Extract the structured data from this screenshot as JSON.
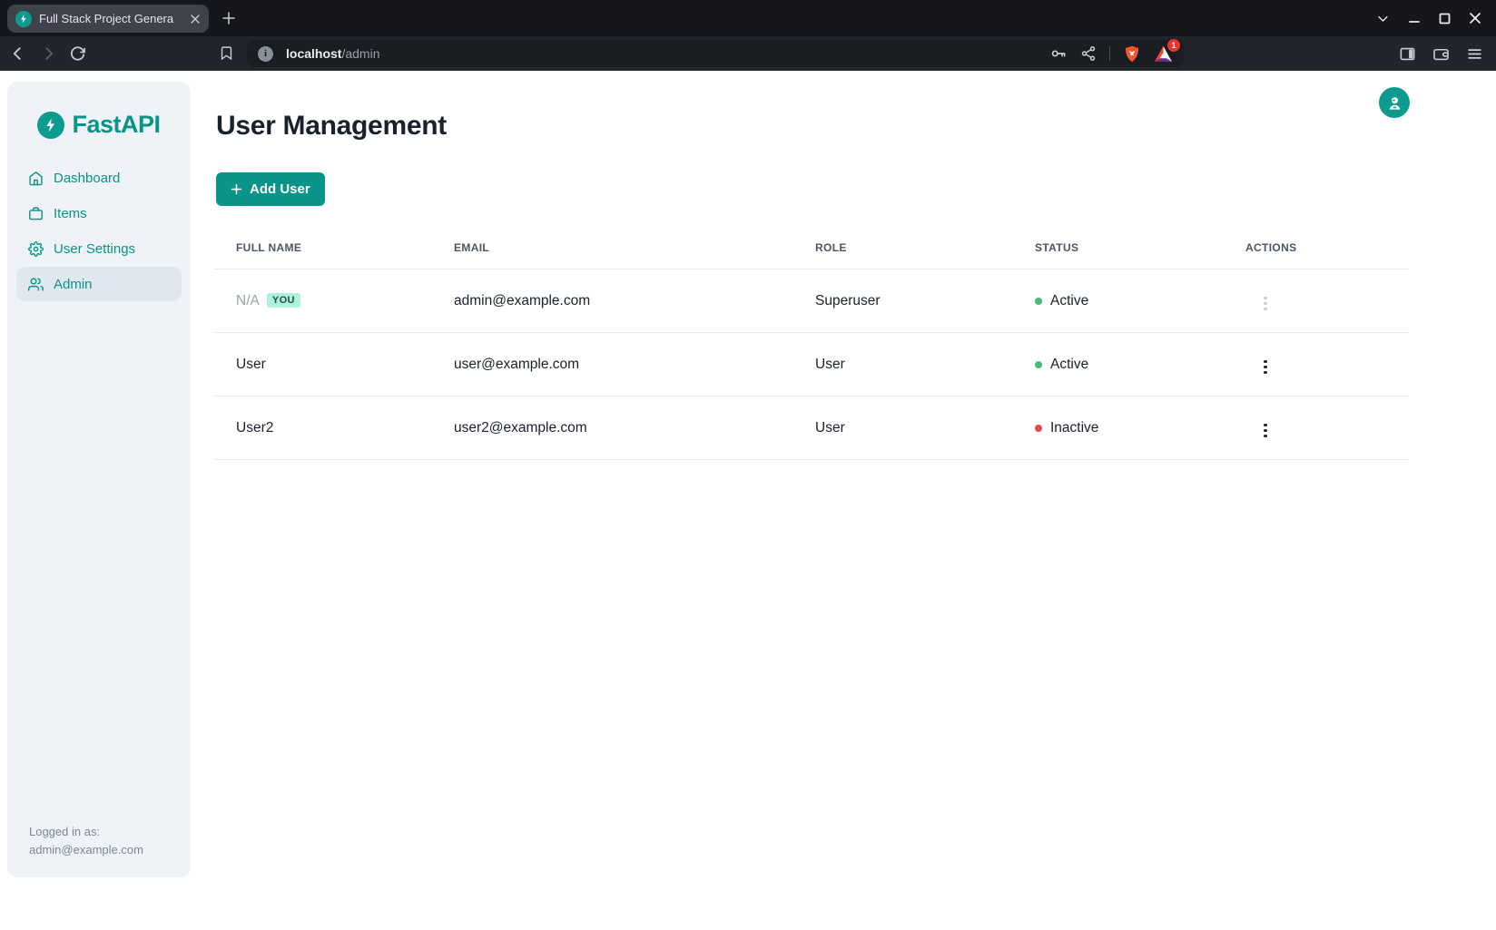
{
  "browser": {
    "tab_title": "Full Stack Project Genera",
    "url_host": "localhost",
    "url_path": "/admin",
    "rewards_badge": "1"
  },
  "sidebar": {
    "logo_text": "FastAPI",
    "nav_items": [
      {
        "label": "Dashboard",
        "icon": "home-icon",
        "active": false
      },
      {
        "label": "Items",
        "icon": "briefcase-icon",
        "active": false
      },
      {
        "label": "User Settings",
        "icon": "gear-icon",
        "active": false
      },
      {
        "label": "Admin",
        "icon": "users-icon",
        "active": true
      }
    ],
    "footer": {
      "label": "Logged in as:",
      "email": "admin@example.com"
    }
  },
  "main": {
    "page_title": "User Management",
    "add_user_button": "Add User",
    "table": {
      "headers": [
        "FULL NAME",
        "EMAIL",
        "ROLE",
        "STATUS",
        "ACTIONS"
      ],
      "rows": [
        {
          "full_name": "N/A",
          "full_name_dim": true,
          "badge": "YOU",
          "email": "admin@example.com",
          "role": "Superuser",
          "status": "Active",
          "active": true,
          "menu_disabled": true
        },
        {
          "full_name": "User",
          "full_name_dim": false,
          "badge": null,
          "email": "user@example.com",
          "role": "User",
          "status": "Active",
          "active": true,
          "menu_disabled": false
        },
        {
          "full_name": "User2",
          "full_name_dim": false,
          "badge": null,
          "email": "user2@example.com",
          "role": "User",
          "status": "Inactive",
          "active": false,
          "menu_disabled": false
        }
      ]
    }
  },
  "colors": {
    "accent_teal": "#089488",
    "status_active": "#48BB78",
    "status_inactive": "#E5484D",
    "badge_bg": "#AFF2DC",
    "badge_text": "#234E52",
    "brave_orange": "#FB542B",
    "sidebar_bg": "#EFF3F8",
    "active_nav_bg": "#E1E7EE"
  }
}
